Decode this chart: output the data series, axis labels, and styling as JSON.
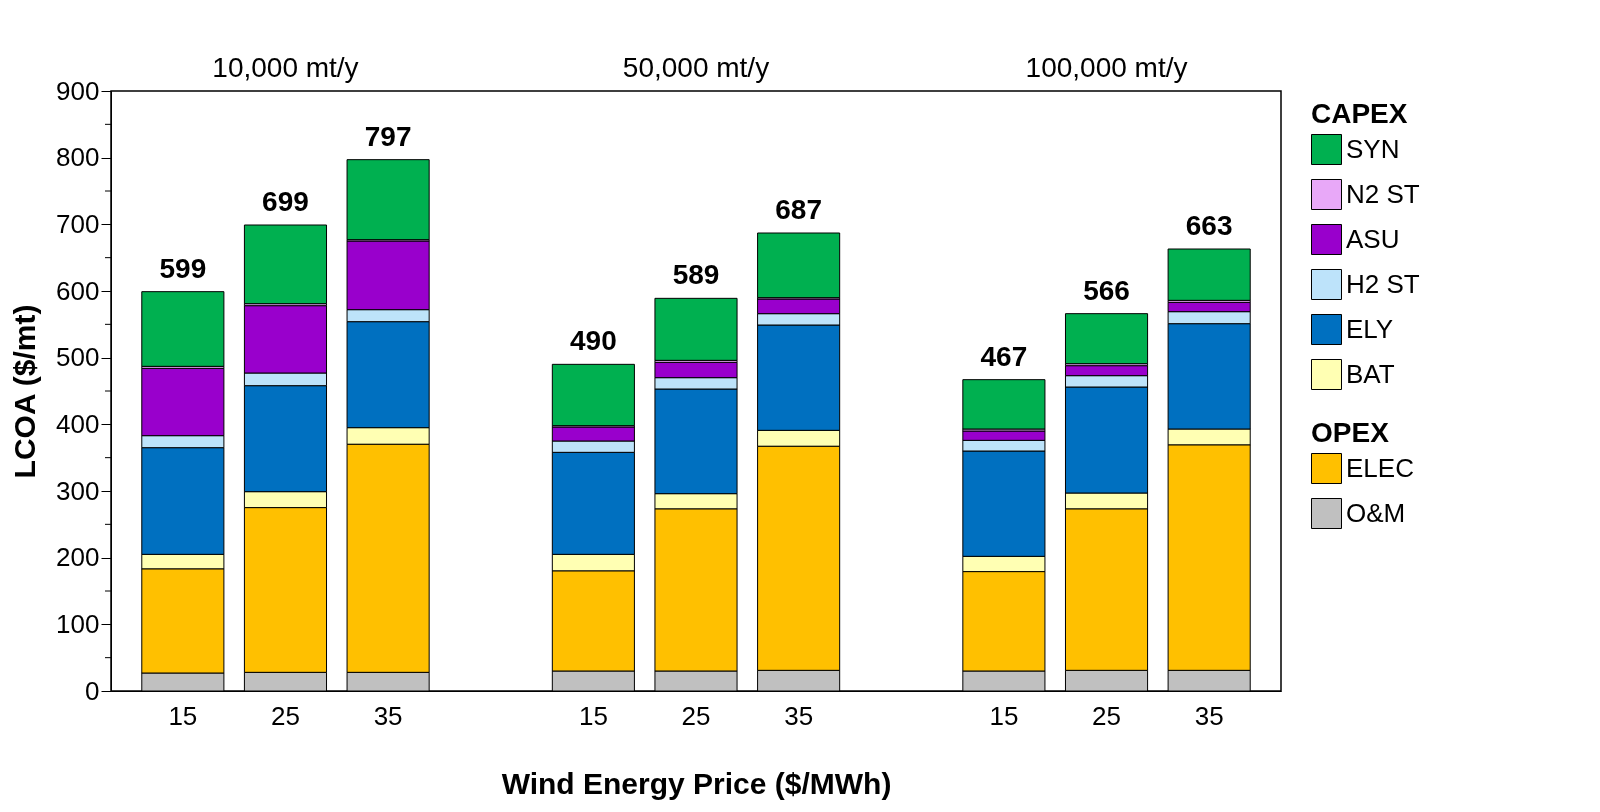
{
  "chart_data": {
    "type": "bar",
    "stacked": true,
    "categories": [
      "15",
      "25",
      "35",
      null,
      "15",
      "25",
      "35",
      null,
      "15",
      "25",
      "35"
    ],
    "series": [
      {
        "name": "O&M",
        "color": "#c0c0c0",
        "values": [
          27,
          28,
          28,
          null,
          30,
          30,
          31,
          null,
          30,
          31,
          31
        ]
      },
      {
        "name": "ELEC",
        "color": "#ffc000",
        "values": [
          156,
          247,
          342,
          null,
          150,
          243,
          336,
          null,
          149,
          242,
          338
        ]
      },
      {
        "name": "BAT",
        "color": "#ffffb3",
        "values": [
          22,
          24,
          25,
          null,
          25,
          23,
          24,
          null,
          23,
          24,
          24
        ]
      },
      {
        "name": "ELY",
        "color": "#0070c0",
        "values": [
          160,
          159,
          159,
          null,
          153,
          157,
          158,
          null,
          158,
          159,
          158
        ]
      },
      {
        "name": "H2 ST",
        "color": "#bde3fa",
        "values": [
          18,
          19,
          18,
          null,
          17,
          17,
          17,
          null,
          16,
          17,
          18
        ]
      },
      {
        "name": "ASU",
        "color": "#9900cc",
        "values": [
          101,
          101,
          103,
          null,
          21,
          23,
          22,
          null,
          14,
          15,
          14
        ]
      },
      {
        "name": "N2 ST",
        "color": "#e8a8f8",
        "values": [
          3,
          3,
          2,
          null,
          2,
          3,
          2,
          null,
          3,
          3,
          3
        ]
      },
      {
        "name": "SYN",
        "color": "#00b050",
        "values": [
          112,
          118,
          120,
          null,
          92,
          93,
          97,
          null,
          74,
          75,
          77
        ]
      }
    ],
    "totals": [
      "599",
      "699",
      "797",
      null,
      "490",
      "589",
      "687",
      null,
      "467",
      "566",
      "663"
    ],
    "xlabel": "Wind Energy Price ($/MWh)",
    "ylabel": "LCOA ($/mt)",
    "legend_title": "CAPEX",
    "annotations": [
      "10,000 mt/y",
      "50,000 mt/y",
      "100,000 mt/y",
      "OPEX"
    ],
    "ylim": [
      0,
      900
    ],
    "yticks": [
      0,
      {
        "value": 50,
        "label": null
      },
      100,
      {
        "value": 150,
        "label": null
      },
      200,
      {
        "value": 250,
        "label": null
      },
      300,
      {
        "value": 350,
        "label": null
      },
      400,
      {
        "value": 450,
        "label": null
      },
      500,
      {
        "value": 550,
        "label": null
      },
      600,
      {
        "value": 650,
        "label": null
      },
      700,
      {
        "value": 750,
        "label": null
      },
      800,
      {
        "value": 850,
        "label": null
      },
      900
    ],
    "grid": false,
    "legend": "right"
  }
}
